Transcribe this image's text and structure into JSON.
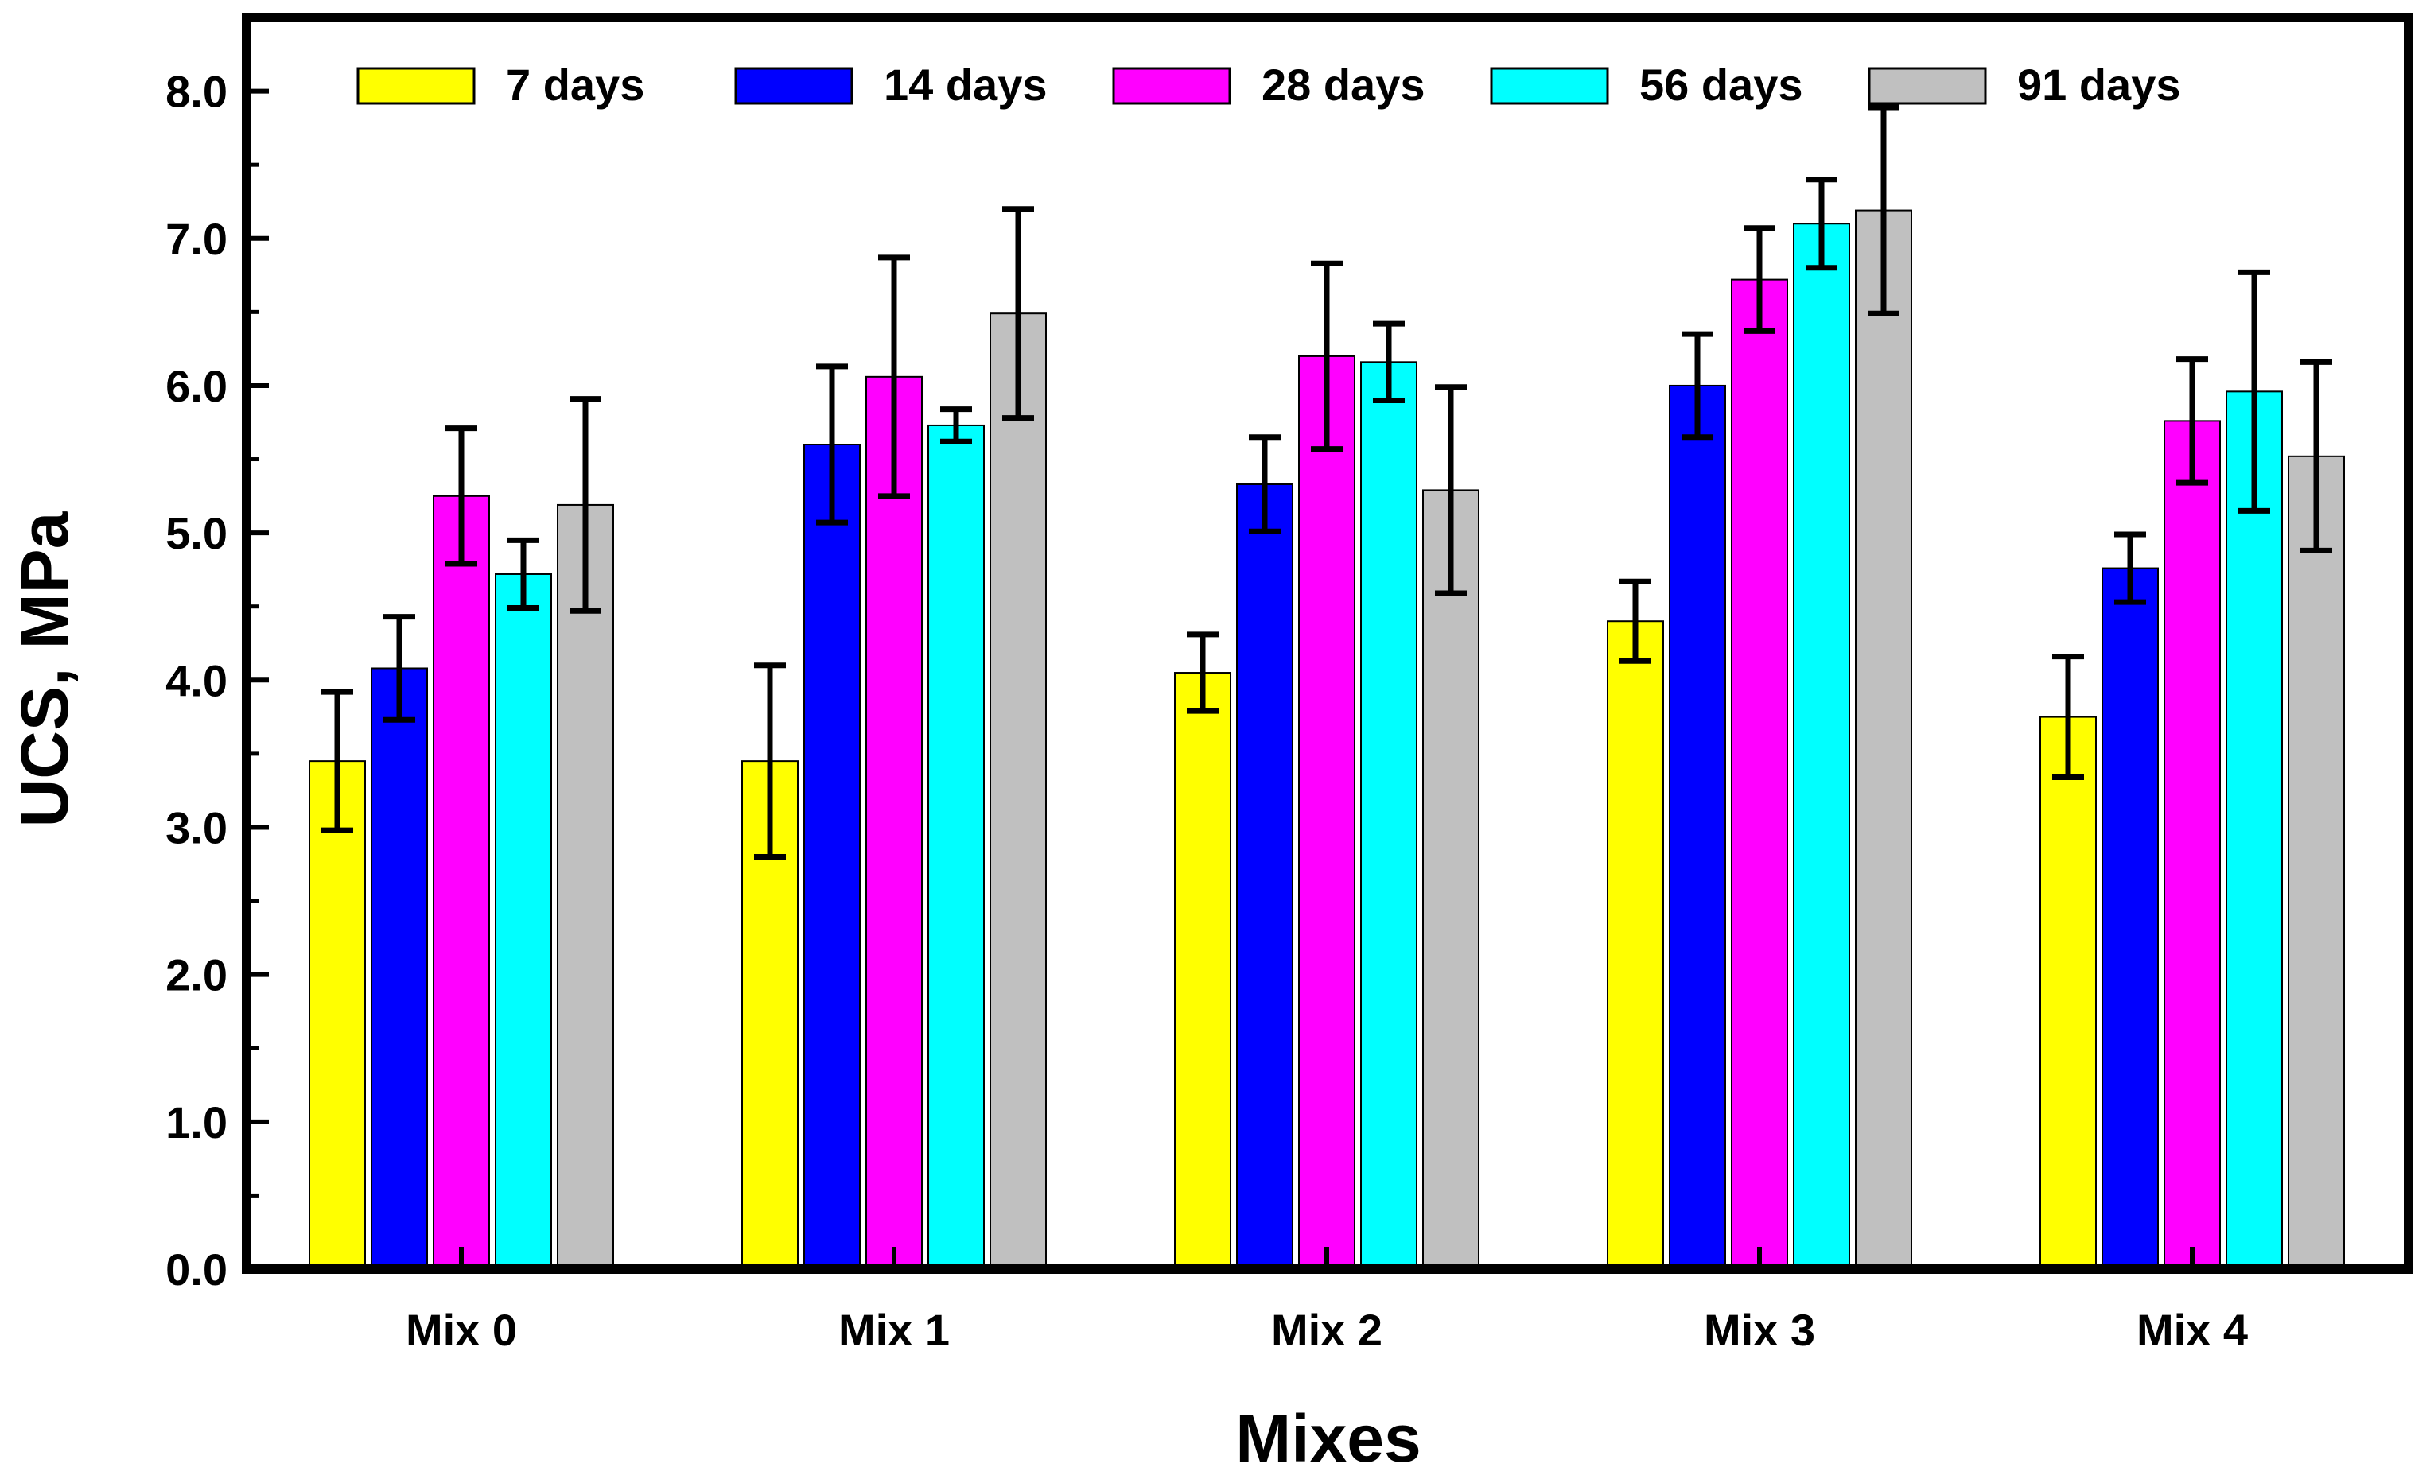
{
  "chart_data": {
    "type": "bar",
    "title": "",
    "xlabel": "Mixes",
    "ylabel": "UCS, MPa",
    "ylim": [
      0,
      8.5
    ],
    "yticks": [
      "0.0",
      "1.0",
      "2.0",
      "3.0",
      "4.0",
      "5.0",
      "6.0",
      "7.0",
      "8.0"
    ],
    "categories": [
      "Mix 0",
      "Mix 1",
      "Mix 2",
      "Mix 3",
      "Mix 4"
    ],
    "legend_position": "top",
    "series": [
      {
        "name": "7 days",
        "color": "#FFFF00",
        "values": [
          3.45,
          3.45,
          4.05,
          4.4,
          3.75
        ],
        "errors": [
          0.47,
          0.65,
          0.26,
          0.27,
          0.41
        ]
      },
      {
        "name": "14 days",
        "color": "#0000FF",
        "values": [
          4.08,
          5.6,
          5.33,
          6.0,
          4.76
        ],
        "errors": [
          0.35,
          0.53,
          0.32,
          0.35,
          0.23
        ]
      },
      {
        "name": "28 days",
        "color": "#FF00FF",
        "values": [
          5.25,
          6.06,
          6.2,
          6.72,
          5.76
        ],
        "errors": [
          0.46,
          0.81,
          0.63,
          0.35,
          0.42
        ]
      },
      {
        "name": "56 days",
        "color": "#00FFFF",
        "values": [
          4.72,
          5.73,
          6.16,
          7.1,
          5.96
        ],
        "errors": [
          0.23,
          0.11,
          0.26,
          0.3,
          0.81
        ]
      },
      {
        "name": "91 days",
        "color": "#C0C0C0",
        "values": [
          5.19,
          6.49,
          5.29,
          7.19,
          5.52
        ],
        "errors": [
          0.72,
          0.71,
          0.7,
          0.7,
          0.64
        ]
      }
    ]
  }
}
